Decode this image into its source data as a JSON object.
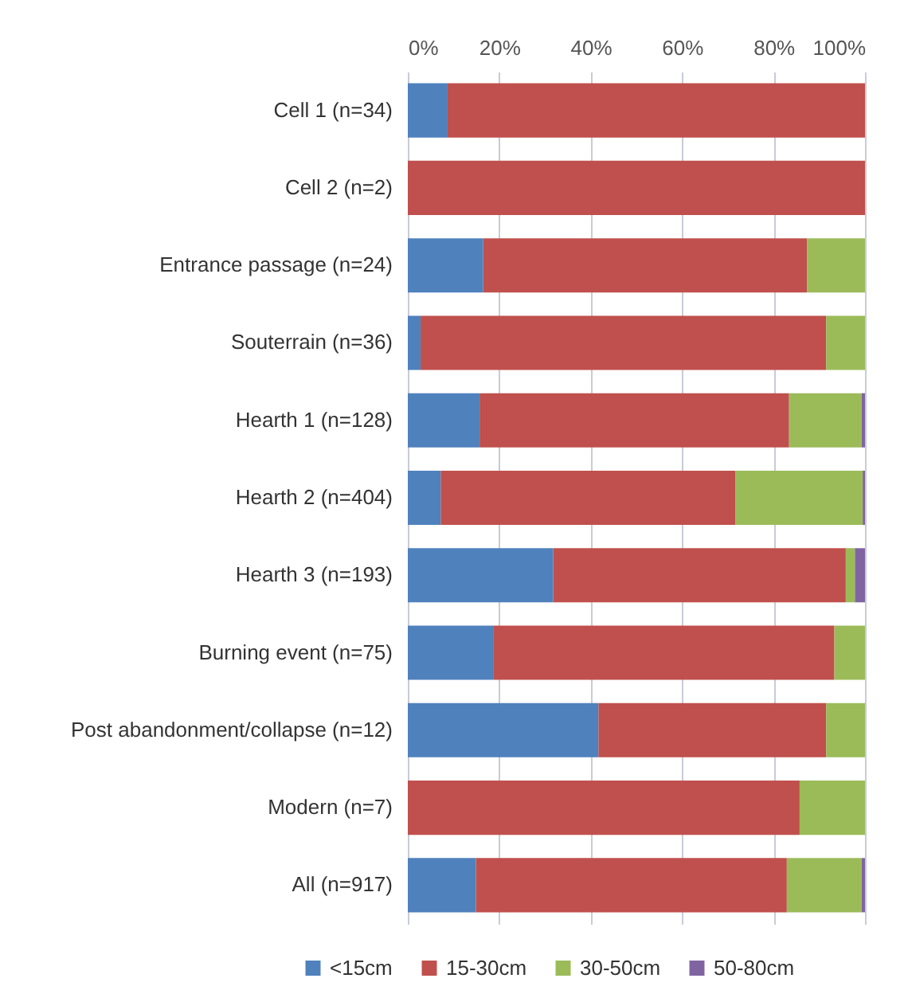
{
  "chart_data": {
    "type": "bar",
    "orientation": "horizontal",
    "stacked": true,
    "categories": [
      "Cell 1 (n=34)",
      "Cell 2 (n=2)",
      "Entrance passage (n=24)",
      "Souterrain (n=36)",
      "Hearth 1 (n=128)",
      "Hearth 2 (n=404)",
      "Hearth 3 (n=193)",
      "Burning event (n=75)",
      "Post abandonment/collapse (n=12)",
      "Modern (n=7)",
      "All (n=917)"
    ],
    "series": [
      {
        "name": "<15cm",
        "color": "#4f81bd",
        "values": [
          8.7,
          null,
          16.5,
          2.8,
          15.7,
          7.2,
          31.8,
          18.8,
          41.7,
          null,
          14.9
        ]
      },
      {
        "name": "15-30cm",
        "color": "#c0504d",
        "values": [
          91.3,
          100,
          70.8,
          88.7,
          67.7,
          64.5,
          64.0,
          74.5,
          49.8,
          85.7,
          68.0
        ]
      },
      {
        "name": "30-50cm",
        "color": "#9bbb59",
        "values": [
          null,
          null,
          12.7,
          8.5,
          15.9,
          27.8,
          2.0,
          6.7,
          8.5,
          14.3,
          16.4
        ]
      },
      {
        "name": "50-80cm",
        "color": "#8064a2",
        "values": [
          null,
          null,
          null,
          null,
          0.7,
          0.5,
          2.2,
          null,
          null,
          null,
          0.7
        ]
      }
    ],
    "xlim": [
      0,
      100
    ],
    "xticks": [
      {
        "value": 0,
        "label": "0%"
      },
      {
        "value": 20,
        "label": "20%"
      },
      {
        "value": 40,
        "label": "40%"
      },
      {
        "value": 60,
        "label": "60%"
      },
      {
        "value": 80,
        "label": "80%"
      },
      {
        "value": 100,
        "label": "100%"
      }
    ],
    "grid": "x",
    "legend": "bottom"
  }
}
